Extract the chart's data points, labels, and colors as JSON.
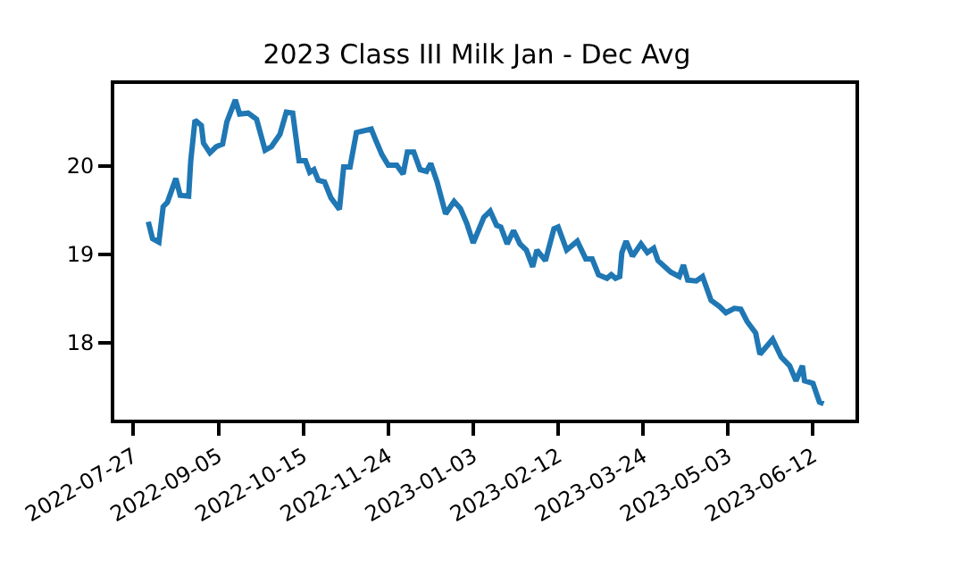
{
  "chart_data": {
    "type": "line",
    "title": "2023 Class III Milk Jan - Dec Avg",
    "x": [
      "2022-08-03",
      "2022-08-05",
      "2022-08-08",
      "2022-08-10",
      "2022-08-12",
      "2022-08-16",
      "2022-08-18",
      "2022-08-22",
      "2022-08-23",
      "2022-08-25",
      "2022-08-28",
      "2022-08-29",
      "2022-09-01",
      "2022-09-04",
      "2022-09-07",
      "2022-09-09",
      "2022-09-13",
      "2022-09-15",
      "2022-09-19",
      "2022-09-23",
      "2022-09-27",
      "2022-09-30",
      "2022-10-04",
      "2022-10-07",
      "2022-10-10",
      "2022-10-13",
      "2022-10-16",
      "2022-10-18",
      "2022-10-20",
      "2022-10-22",
      "2022-10-25",
      "2022-10-28",
      "2022-11-01",
      "2022-11-03",
      "2022-11-06",
      "2022-11-09",
      "2022-11-16",
      "2022-11-18",
      "2022-11-21",
      "2022-11-24",
      "2022-11-28",
      "2022-12-01",
      "2022-12-03",
      "2022-12-06",
      "2022-12-09",
      "2022-12-12",
      "2022-12-14",
      "2022-12-17",
      "2022-12-21",
      "2022-12-25",
      "2022-12-28",
      "2022-12-31",
      "2023-01-03",
      "2023-01-08",
      "2023-01-11",
      "2023-01-14",
      "2023-01-16",
      "2023-01-19",
      "2023-01-22",
      "2023-01-25",
      "2023-01-28",
      "2023-01-31",
      "2023-02-02",
      "2023-02-06",
      "2023-02-10",
      "2023-02-12",
      "2023-02-16",
      "2023-02-21",
      "2023-02-25",
      "2023-02-28",
      "2023-03-03",
      "2023-03-07",
      "2023-03-09",
      "2023-03-11",
      "2023-03-13",
      "2023-03-14",
      "2023-03-16",
      "2023-03-19",
      "2023-03-23",
      "2023-03-26",
      "2023-03-29",
      "2023-03-31",
      "2023-04-06",
      "2023-04-10",
      "2023-04-12",
      "2023-04-14",
      "2023-04-18",
      "2023-04-21",
      "2023-04-25",
      "2023-04-29",
      "2023-05-02",
      "2023-05-06",
      "2023-05-09",
      "2023-05-12",
      "2023-05-16",
      "2023-05-18",
      "2023-05-24",
      "2023-05-28",
      "2023-06-01",
      "2023-06-04",
      "2023-06-07",
      "2023-06-08",
      "2023-06-12",
      "2023-06-15",
      "2023-06-17"
    ],
    "series": [
      {
        "color": "#1f77b4",
        "values": [
          19.37,
          19.18,
          19.14,
          19.54,
          19.59,
          19.86,
          19.67,
          19.66,
          20.06,
          20.52,
          20.46,
          20.26,
          20.15,
          20.22,
          20.25,
          20.5,
          20.75,
          20.59,
          20.6,
          20.53,
          20.18,
          20.22,
          20.36,
          20.61,
          20.6,
          20.06,
          20.06,
          19.93,
          19.96,
          19.84,
          19.82,
          19.64,
          19.51,
          19.99,
          19.99,
          20.38,
          20.42,
          20.3,
          20.13,
          20.01,
          20.01,
          19.91,
          20.16,
          20.16,
          19.96,
          19.94,
          20.03,
          19.82,
          19.46,
          19.6,
          19.52,
          19.35,
          19.13,
          19.42,
          19.49,
          19.33,
          19.31,
          19.12,
          19.27,
          19.12,
          19.05,
          18.86,
          19.05,
          18.93,
          19.29,
          19.31,
          19.05,
          19.15,
          18.95,
          18.95,
          18.77,
          18.73,
          18.77,
          18.73,
          18.75,
          19.02,
          19.15,
          18.98,
          19.12,
          19.02,
          19.07,
          18.93,
          18.8,
          18.75,
          18.88,
          18.71,
          18.7,
          18.75,
          18.48,
          18.41,
          18.34,
          18.39,
          18.38,
          18.24,
          18.11,
          17.87,
          18.04,
          17.84,
          17.74,
          17.57,
          17.74,
          17.57,
          17.54,
          17.33,
          17.31
        ]
      }
    ],
    "xlim": [
      "2022-07-18",
      "2023-07-02"
    ],
    "xticks": [
      "2022-07-27",
      "2022-09-05",
      "2022-10-15",
      "2022-11-24",
      "2023-01-03",
      "2023-02-12",
      "2023-03-24",
      "2023-05-03",
      "2023-06-12"
    ],
    "ylim": [
      17.13,
      20.93
    ],
    "yticks": [
      18,
      19,
      20
    ],
    "marker": "none",
    "line_style": "solid"
  }
}
